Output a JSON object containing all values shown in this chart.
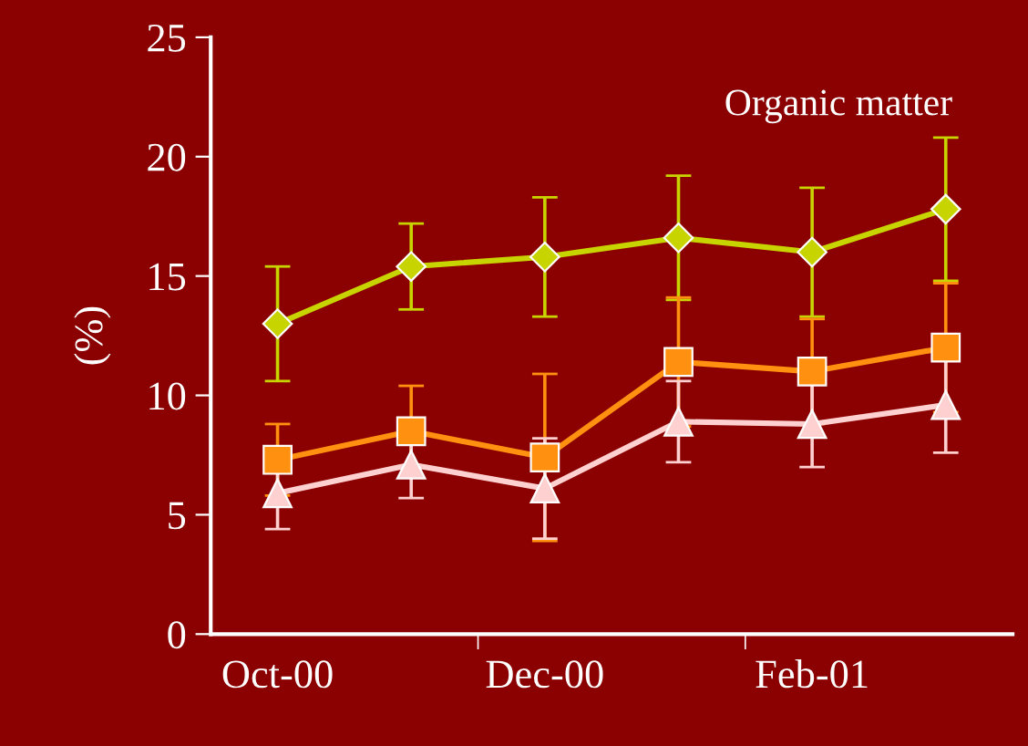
{
  "chart_data": {
    "type": "line",
    "ylabel": "(%)",
    "categories": [
      "Oct-00",
      null,
      "Dec-00",
      null,
      "Feb-01",
      null
    ],
    "ylim": [
      0,
      25
    ],
    "yticks": [
      0,
      5,
      10,
      15,
      20,
      25
    ],
    "grid": false,
    "legend": false,
    "series": [
      {
        "name": "Organic matter",
        "color": "#c8d400",
        "marker": "diamond",
        "values": [
          13.0,
          15.4,
          15.8,
          16.6,
          16.0,
          17.8
        ],
        "errors": [
          2.4,
          1.8,
          2.5,
          2.6,
          2.7,
          3.0
        ]
      },
      {
        "color": "#ff9010",
        "marker": "square",
        "values": [
          7.3,
          8.5,
          7.4,
          11.4,
          11.0,
          12.0
        ],
        "errors": [
          1.5,
          1.9,
          3.5,
          2.7,
          2.2,
          2.7
        ]
      },
      {
        "color": "#ffd0d0",
        "marker": "triangle",
        "values": [
          5.9,
          7.1,
          6.1,
          8.9,
          8.8,
          9.6
        ],
        "errors": [
          1.5,
          1.4,
          2.1,
          1.7,
          1.8,
          2.0
        ]
      }
    ]
  }
}
